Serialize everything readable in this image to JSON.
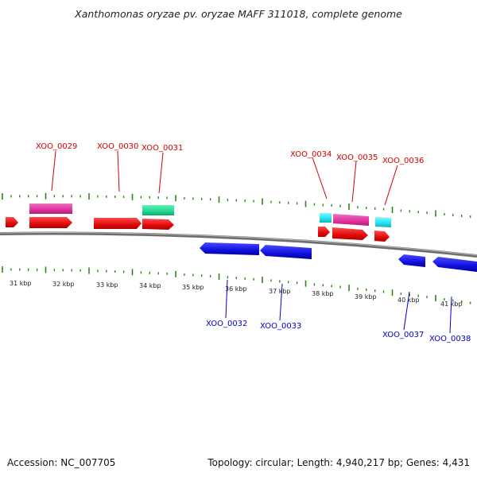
{
  "header": {
    "title": "Xanthomonas oryzae pv. oryzae MAFF 311018, complete genome"
  },
  "footer": {
    "accession": "Accession: NC_007705",
    "summary": "Topology: circular; Length: 4,940,217 bp; Genes: 4,431"
  },
  "colors": {
    "forward_cds": "#e01010",
    "reverse_cds": "#1010dd",
    "pink_feature": "#e0309a",
    "teal_feature": "#20d890",
    "cyan_feature": "#20e0ee",
    "tick": "#2a8a10",
    "backbone": "#7a7a7a",
    "forward_label": "#d00000",
    "reverse_label": "#0000c8"
  },
  "scale": {
    "labels": [
      "31 kbp",
      "32 kbp",
      "33 kbp",
      "34 kbp",
      "35 kbp",
      "36 kbp",
      "37 kbp",
      "38 kbp",
      "39 kbp",
      "40 kbp",
      "41 kbp"
    ]
  },
  "genes_top": [
    {
      "name": "XOO_0029"
    },
    {
      "name": "XOO_0030"
    },
    {
      "name": "XOO_0031"
    },
    {
      "name": "XOO_0034"
    },
    {
      "name": "XOO_0035"
    },
    {
      "name": "XOO_0036"
    }
  ],
  "genes_bottom": [
    {
      "name": "XOO_0032"
    },
    {
      "name": "XOO_0033"
    },
    {
      "name": "XOO_0037"
    },
    {
      "name": "XOO_0038"
    }
  ]
}
